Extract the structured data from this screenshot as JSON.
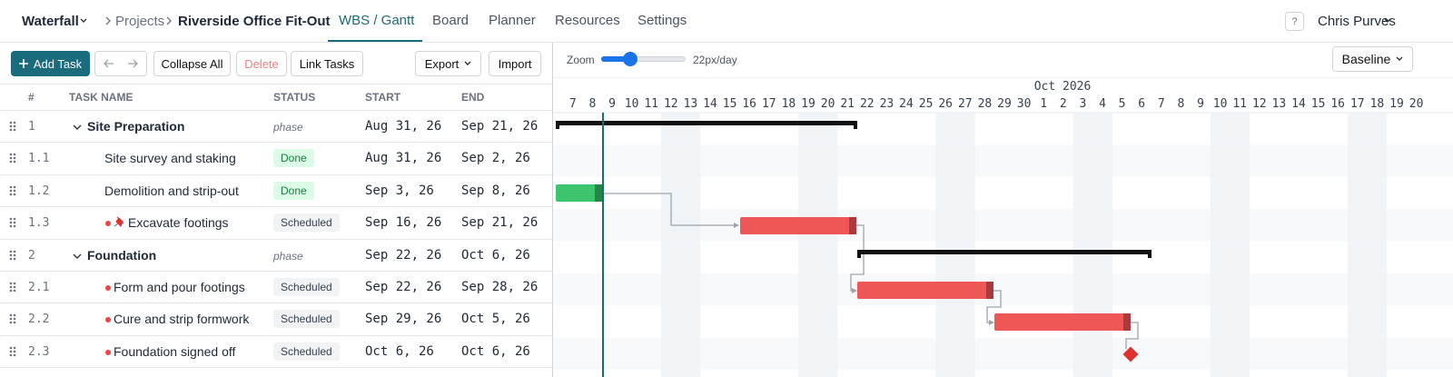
{
  "header": {
    "workspace": "Waterfall",
    "breadcrumb": [
      "Projects",
      "Riverside Office Fit-Out"
    ],
    "tabs": [
      "WBS / Gantt",
      "Board",
      "Planner",
      "Resources",
      "Settings"
    ],
    "help": "?",
    "user": "Chris Purves"
  },
  "toolbar": {
    "add": "Add Task",
    "buttons": [
      "Collapse All",
      "Delete",
      "Link Tasks"
    ],
    "export": "Export",
    "import": "Import"
  },
  "zoom": {
    "label": "Zoom",
    "value": "22px/day"
  },
  "baseline": "Baseline",
  "table": {
    "columns": [
      "#",
      "TASK NAME",
      "STATUS",
      "START",
      "END"
    ],
    "rows": [
      [
        "1",
        "Site Preparation",
        "phase",
        "Aug 31, 26",
        "Sep 21, 26"
      ],
      [
        "1.1",
        "Site survey and staking",
        "Done",
        "Aug 31, 26",
        "Sep 2, 26"
      ],
      [
        "1.2",
        "Demolition and strip-out",
        "Done",
        "Sep 3, 26",
        "Sep 8, 26"
      ],
      [
        "1.3",
        "Excavate footings",
        "Scheduled",
        "Sep 16, 26",
        "Sep 21, 26"
      ],
      [
        "2",
        "Foundation",
        "phase",
        "Sep 22, 26",
        "Oct 6, 26"
      ],
      [
        "2.1",
        "Form and pour footings",
        "Scheduled",
        "Sep 22, 26",
        "Sep 28, 26"
      ],
      [
        "2.2",
        "Cure and strip formwork",
        "Scheduled",
        "Sep 29, 26",
        "Oct 5, 26"
      ],
      [
        "2.3",
        "Foundation signed off",
        "Scheduled",
        "Oct 6, 26",
        "Oct 6, 26"
      ]
    ]
  },
  "timeline": {
    "month": "Oct 2026",
    "days": [
      "7",
      "8",
      "9",
      "10",
      "11",
      "12",
      "13",
      "14",
      "15",
      "16",
      "17",
      "18",
      "19",
      "20",
      "21",
      "22",
      "23",
      "24",
      "25",
      "26",
      "27",
      "28",
      "29",
      "30",
      "1",
      "2",
      "3",
      "4",
      "5",
      "6",
      "7",
      "8",
      "9",
      "10",
      "11",
      "12",
      "13",
      "14",
      "15",
      "16",
      "17",
      "18",
      "19",
      "20"
    ]
  }
}
